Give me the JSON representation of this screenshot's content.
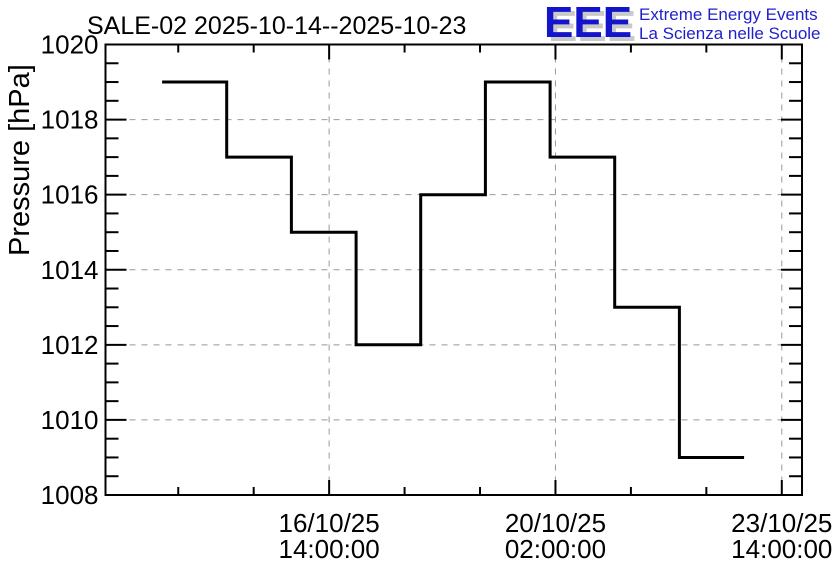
{
  "window": {
    "background": "#ffffff"
  },
  "header": {
    "title": "SALE-02 2025-10-14--2025-10-23"
  },
  "logo": {
    "acronym": "EEE",
    "line1": "Extreme Energy Events",
    "line2": "La Scienza nelle Scuole",
    "acronym_color": "#1414cc",
    "text_color": "#2121cc",
    "shadow_color": "#c9c9c9"
  },
  "chart_data": {
    "type": "line",
    "line_style": "step-post",
    "title": "SALE-02 2025-10-14--2025-10-23",
    "xlabel": "",
    "ylabel": "Pressure [hPa]",
    "ylim": [
      1008,
      1020
    ],
    "y_major_step": 2,
    "y_minor_step": 0.5,
    "grid": true,
    "legend": "none",
    "categories": [
      "2025-10-14",
      "2025-10-15",
      "2025-10-16",
      "2025-10-17",
      "2025-10-18",
      "2025-10-19",
      "2025-10-20",
      "2025-10-21",
      "2025-10-22"
    ],
    "values": [
      1019,
      1017,
      1015,
      1012,
      1016,
      1019,
      1017,
      1013,
      1009
    ],
    "y_tick_labels": [
      {
        "value": 1020,
        "label": "1020"
      },
      {
        "value": 1018,
        "label": "1018"
      },
      {
        "value": 1016,
        "label": "1016"
      },
      {
        "value": 1014,
        "label": "1014"
      },
      {
        "value": 1012,
        "label": "1012"
      },
      {
        "value": 1010,
        "label": "1010"
      },
      {
        "value": 1008,
        "label": "1008"
      }
    ],
    "x_axis": {
      "unit": "hours since 2025-10-14 00:00:00",
      "min": -21,
      "max": 237.5,
      "data_start_hour": 0,
      "segment_hours": 24,
      "minor_tick_first": 6,
      "minor_tick_step": 28,
      "major_ticks": [
        {
          "hours": 62,
          "date": "16/10/25",
          "time": "14:00:00"
        },
        {
          "hours": 146,
          "date": "20/10/25",
          "time": "02:00:00"
        },
        {
          "hours": 230,
          "date": "23/10/25",
          "time": "14:00:00"
        }
      ]
    },
    "colors": {
      "line": "#000000",
      "grid": "#999999",
      "frame": "#000000",
      "background": "#ffffff"
    }
  }
}
